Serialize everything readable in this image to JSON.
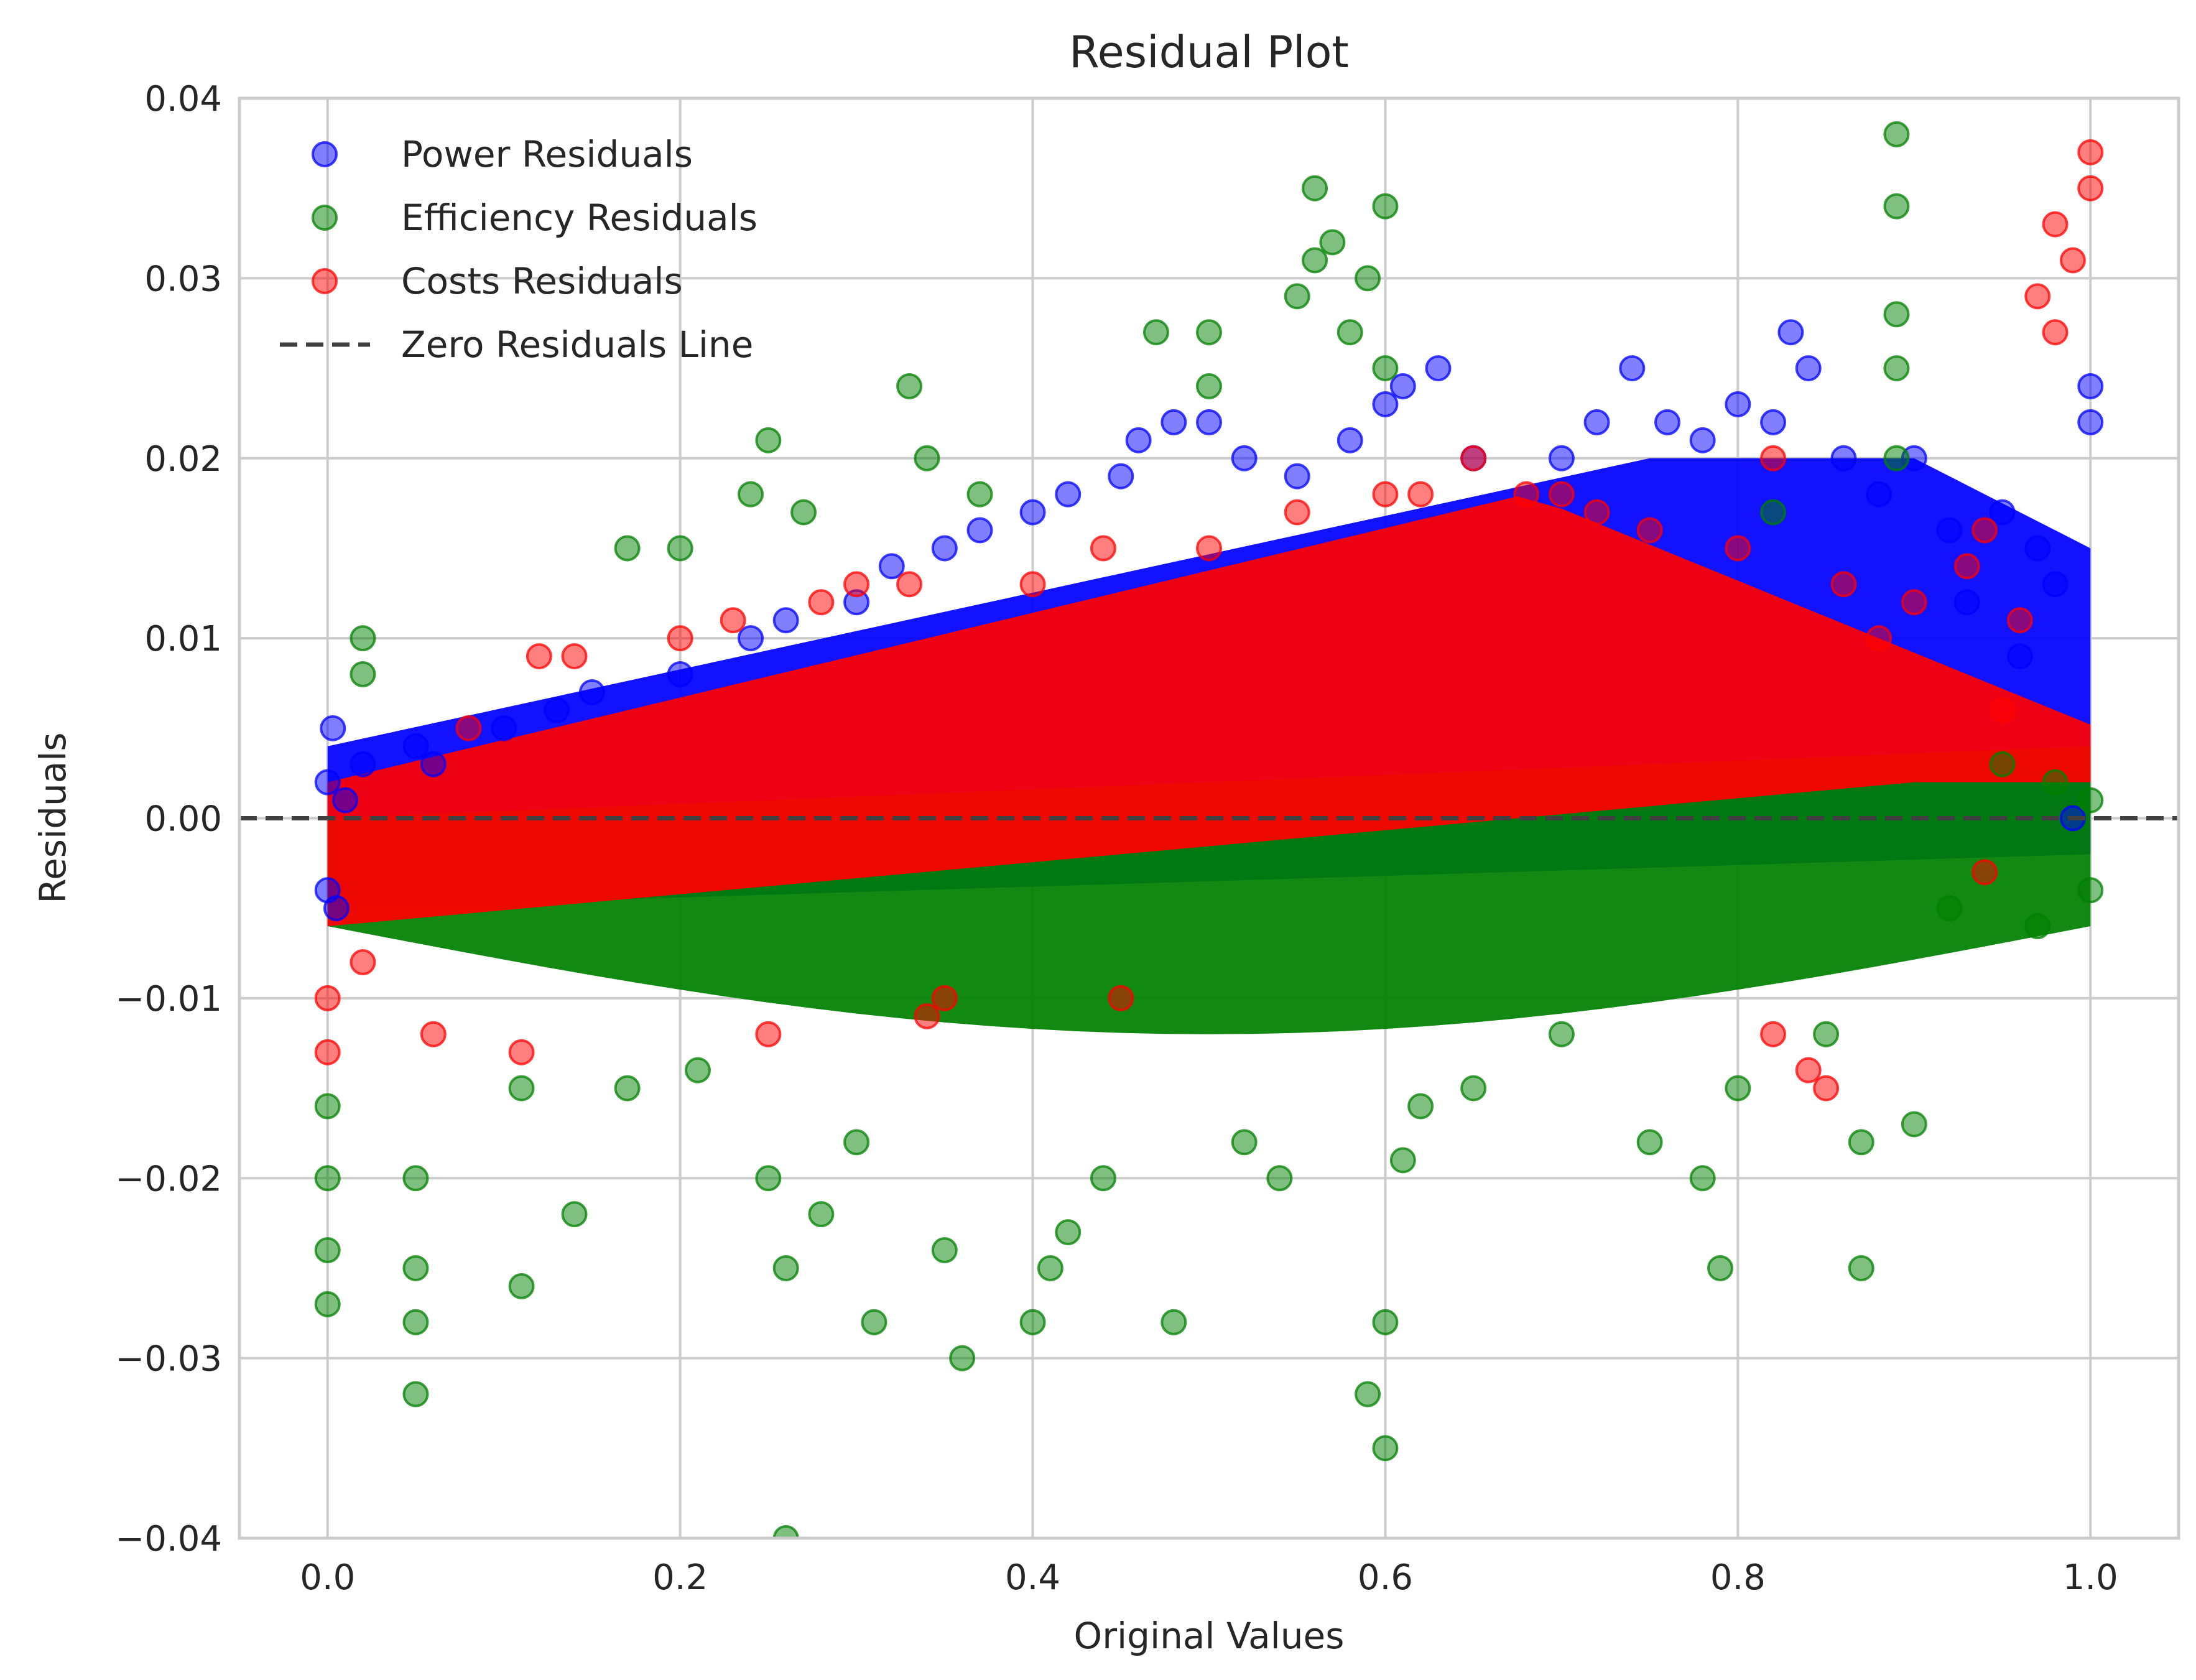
{
  "chart_data": {
    "type": "scatter",
    "title": "Residual Plot",
    "xlabel": "Original Values",
    "ylabel": "Residuals",
    "xlim": [
      -0.05,
      1.05
    ],
    "ylim": [
      -0.04,
      0.04
    ],
    "xticks": [
      0.0,
      0.2,
      0.4,
      0.6,
      0.8,
      1.0
    ],
    "xtick_labels": [
      "0.0",
      "0.2",
      "0.4",
      "0.6",
      "0.8",
      "1.0"
    ],
    "yticks": [
      -0.04,
      -0.03,
      -0.02,
      -0.01,
      0.0,
      0.01,
      0.02,
      0.03,
      0.04
    ],
    "ytick_labels": [
      "−0.04",
      "−0.03",
      "−0.02",
      "−0.01",
      "0.00",
      "0.01",
      "0.02",
      "0.03",
      "0.04"
    ],
    "grid": true,
    "legend_position": "top-left",
    "zero_line": {
      "name": "Zero Residuals Line",
      "y": 0.0,
      "color": "#404040",
      "style": "dashed"
    },
    "series": [
      {
        "name": "Power Residuals",
        "color": "#0000ff",
        "alpha": 0.5,
        "points": [
          [
            0.0,
            -0.004
          ],
          [
            0.0,
            0.002
          ],
          [
            0.003,
            0.005
          ],
          [
            0.005,
            -0.005
          ],
          [
            0.01,
            0.001
          ],
          [
            0.02,
            0.003
          ],
          [
            0.05,
            0.004
          ],
          [
            0.06,
            0.003
          ],
          [
            0.1,
            0.005
          ],
          [
            0.13,
            0.006
          ],
          [
            0.15,
            0.007
          ],
          [
            0.2,
            0.008
          ],
          [
            0.24,
            0.01
          ],
          [
            0.26,
            0.011
          ],
          [
            0.3,
            0.012
          ],
          [
            0.32,
            0.014
          ],
          [
            0.35,
            0.015
          ],
          [
            0.37,
            0.016
          ],
          [
            0.4,
            0.017
          ],
          [
            0.42,
            0.018
          ],
          [
            0.45,
            0.019
          ],
          [
            0.46,
            0.021
          ],
          [
            0.48,
            0.022
          ],
          [
            0.5,
            0.022
          ],
          [
            0.52,
            0.02
          ],
          [
            0.55,
            0.019
          ],
          [
            0.58,
            0.021
          ],
          [
            0.6,
            0.023
          ],
          [
            0.61,
            0.024
          ],
          [
            0.63,
            0.025
          ],
          [
            0.65,
            0.02
          ],
          [
            0.7,
            0.02
          ],
          [
            0.72,
            0.022
          ],
          [
            0.74,
            0.025
          ],
          [
            0.76,
            0.022
          ],
          [
            0.78,
            0.021
          ],
          [
            0.8,
            0.023
          ],
          [
            0.82,
            0.022
          ],
          [
            0.83,
            0.027
          ],
          [
            0.84,
            0.025
          ],
          [
            0.86,
            0.02
          ],
          [
            0.88,
            0.018
          ],
          [
            0.9,
            0.02
          ],
          [
            0.92,
            0.016
          ],
          [
            0.95,
            0.017
          ],
          [
            0.97,
            0.015
          ],
          [
            0.98,
            0.013
          ],
          [
            1.0,
            0.022
          ],
          [
            1.0,
            0.024
          ],
          [
            0.99,
            0.0
          ],
          [
            0.96,
            0.009
          ],
          [
            0.93,
            0.012
          ]
        ]
      },
      {
        "name": "Efficiency Residuals",
        "color": "#008000",
        "alpha": 0.5,
        "points": [
          [
            0.0,
            -0.027
          ],
          [
            0.0,
            -0.024
          ],
          [
            0.0,
            -0.02
          ],
          [
            0.0,
            -0.016
          ],
          [
            0.02,
            0.01
          ],
          [
            0.02,
            0.008
          ],
          [
            0.05,
            -0.032
          ],
          [
            0.05,
            -0.028
          ],
          [
            0.05,
            -0.025
          ],
          [
            0.05,
            -0.02
          ],
          [
            0.11,
            -0.026
          ],
          [
            0.11,
            -0.015
          ],
          [
            0.14,
            -0.022
          ],
          [
            0.17,
            0.015
          ],
          [
            0.17,
            -0.015
          ],
          [
            0.2,
            0.015
          ],
          [
            0.21,
            -0.014
          ],
          [
            0.24,
            0.018
          ],
          [
            0.25,
            0.021
          ],
          [
            0.25,
            -0.02
          ],
          [
            0.26,
            -0.025
          ],
          [
            0.27,
            0.017
          ],
          [
            0.26,
            -0.04
          ],
          [
            0.28,
            -0.022
          ],
          [
            0.3,
            -0.018
          ],
          [
            0.31,
            -0.028
          ],
          [
            0.33,
            0.024
          ],
          [
            0.34,
            0.02
          ],
          [
            0.35,
            -0.024
          ],
          [
            0.36,
            -0.03
          ],
          [
            0.37,
            0.018
          ],
          [
            0.4,
            -0.028
          ],
          [
            0.41,
            -0.025
          ],
          [
            0.42,
            -0.023
          ],
          [
            0.44,
            -0.02
          ],
          [
            0.47,
            0.027
          ],
          [
            0.48,
            -0.028
          ],
          [
            0.5,
            0.027
          ],
          [
            0.5,
            0.024
          ],
          [
            0.52,
            -0.018
          ],
          [
            0.54,
            -0.02
          ],
          [
            0.55,
            0.029
          ],
          [
            0.56,
            0.035
          ],
          [
            0.56,
            0.031
          ],
          [
            0.57,
            0.032
          ],
          [
            0.58,
            0.027
          ],
          [
            0.59,
            0.03
          ],
          [
            0.6,
            0.034
          ],
          [
            0.6,
            0.025
          ],
          [
            0.59,
            -0.032
          ],
          [
            0.6,
            -0.035
          ],
          [
            0.6,
            -0.028
          ],
          [
            0.61,
            -0.019
          ],
          [
            0.62,
            -0.016
          ],
          [
            0.65,
            -0.015
          ],
          [
            0.7,
            -0.012
          ],
          [
            0.75,
            -0.018
          ],
          [
            0.78,
            -0.02
          ],
          [
            0.79,
            -0.025
          ],
          [
            0.8,
            -0.015
          ],
          [
            0.82,
            0.017
          ],
          [
            0.85,
            -0.012
          ],
          [
            0.87,
            -0.025
          ],
          [
            0.87,
            -0.018
          ],
          [
            0.89,
            0.038
          ],
          [
            0.89,
            0.034
          ],
          [
            0.89,
            0.028
          ],
          [
            0.89,
            0.025
          ],
          [
            0.89,
            0.02
          ],
          [
            0.9,
            -0.017
          ],
          [
            0.92,
            -0.005
          ],
          [
            0.95,
            0.003
          ],
          [
            0.98,
            0.002
          ],
          [
            1.0,
            0.001
          ],
          [
            1.0,
            -0.004
          ],
          [
            0.97,
            -0.006
          ]
        ]
      },
      {
        "name": "Costs Residuals",
        "color": "#ff0000",
        "alpha": 0.5,
        "points": [
          [
            0.0,
            -0.013
          ],
          [
            0.0,
            -0.01
          ],
          [
            0.02,
            -0.008
          ],
          [
            0.06,
            -0.012
          ],
          [
            0.08,
            0.005
          ],
          [
            0.11,
            -0.013
          ],
          [
            0.12,
            0.009
          ],
          [
            0.14,
            0.009
          ],
          [
            0.2,
            0.01
          ],
          [
            0.23,
            0.011
          ],
          [
            0.25,
            -0.012
          ],
          [
            0.28,
            0.012
          ],
          [
            0.3,
            0.013
          ],
          [
            0.33,
            0.013
          ],
          [
            0.34,
            -0.011
          ],
          [
            0.35,
            -0.01
          ],
          [
            0.4,
            0.013
          ],
          [
            0.44,
            0.015
          ],
          [
            0.45,
            -0.01
          ],
          [
            0.5,
            0.015
          ],
          [
            0.55,
            0.017
          ],
          [
            0.6,
            0.018
          ],
          [
            0.62,
            0.018
          ],
          [
            0.65,
            0.02
          ],
          [
            0.68,
            0.018
          ],
          [
            0.7,
            0.018
          ],
          [
            0.72,
            0.017
          ],
          [
            0.75,
            0.016
          ],
          [
            0.8,
            0.015
          ],
          [
            0.82,
            0.02
          ],
          [
            0.85,
            -0.015
          ],
          [
            0.86,
            0.013
          ],
          [
            0.88,
            0.01
          ],
          [
            0.9,
            0.012
          ],
          [
            0.93,
            0.014
          ],
          [
            0.94,
            0.016
          ],
          [
            0.95,
            0.006
          ],
          [
            0.96,
            0.011
          ],
          [
            0.98,
            0.033
          ],
          [
            0.98,
            0.027
          ],
          [
            0.99,
            0.031
          ],
          [
            1.0,
            0.037
          ],
          [
            1.0,
            0.035
          ],
          [
            0.97,
            0.029
          ],
          [
            0.82,
            -0.012
          ],
          [
            0.84,
            -0.014
          ],
          [
            0.94,
            -0.003
          ]
        ]
      }
    ]
  }
}
